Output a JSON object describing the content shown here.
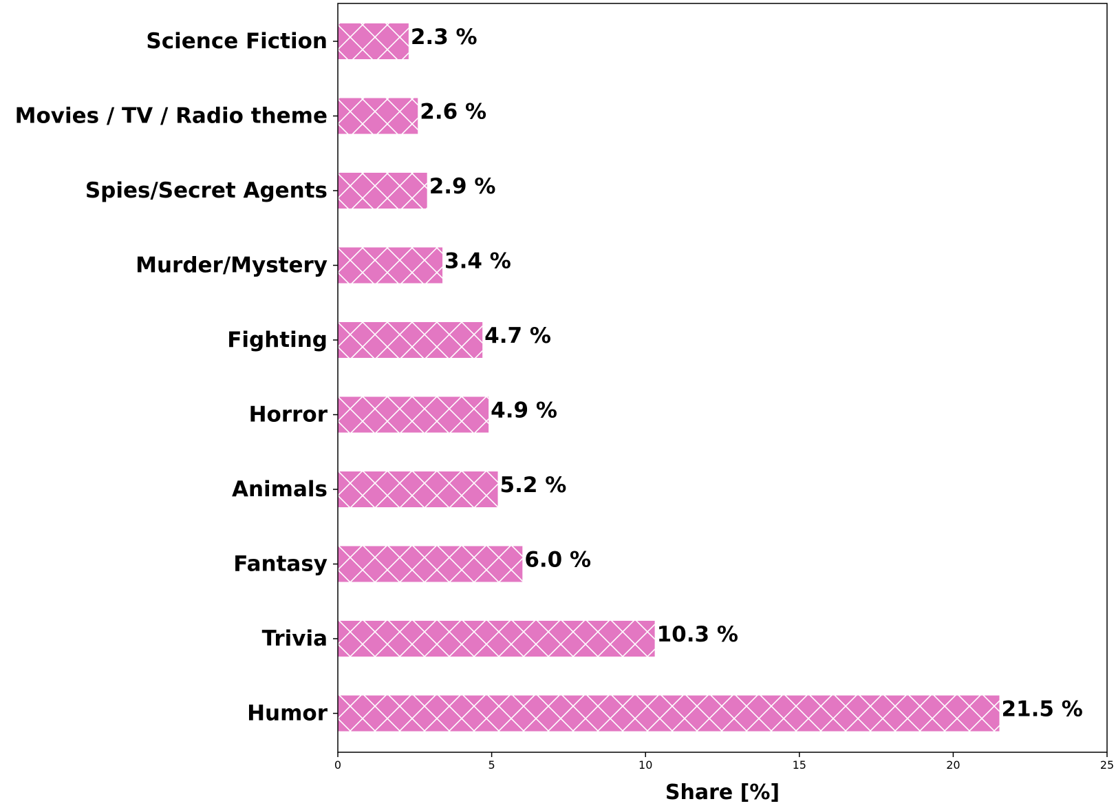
{
  "chart_data": {
    "type": "bar",
    "orientation": "horizontal",
    "categories": [
      "Science Fiction",
      "Movies / TV / Radio theme",
      "Spies/Secret Agents",
      "Murder/Mystery",
      "Fighting",
      "Horror",
      "Animals",
      "Fantasy",
      "Trivia",
      "Humor"
    ],
    "values": [
      2.3,
      2.6,
      2.9,
      3.4,
      4.7,
      4.9,
      5.2,
      6.0,
      10.3,
      21.5
    ],
    "value_labels": [
      "2.3 %",
      "2.6 %",
      "2.9 %",
      "3.4 %",
      "4.7 %",
      "4.9 %",
      "5.2 %",
      "6.0 %",
      "10.3 %",
      "21.5 %"
    ],
    "xlabel": "Share [%]",
    "ylabel": "",
    "xlim": [
      0,
      25
    ],
    "xticks": [
      0,
      5,
      10,
      15,
      20,
      25
    ],
    "xtick_labels": [
      "0",
      "5",
      "10",
      "15",
      "20",
      "25"
    ],
    "grid": false,
    "bar_color": "#e377c2",
    "hatch": "x",
    "hatch_color": "#ffffff"
  }
}
